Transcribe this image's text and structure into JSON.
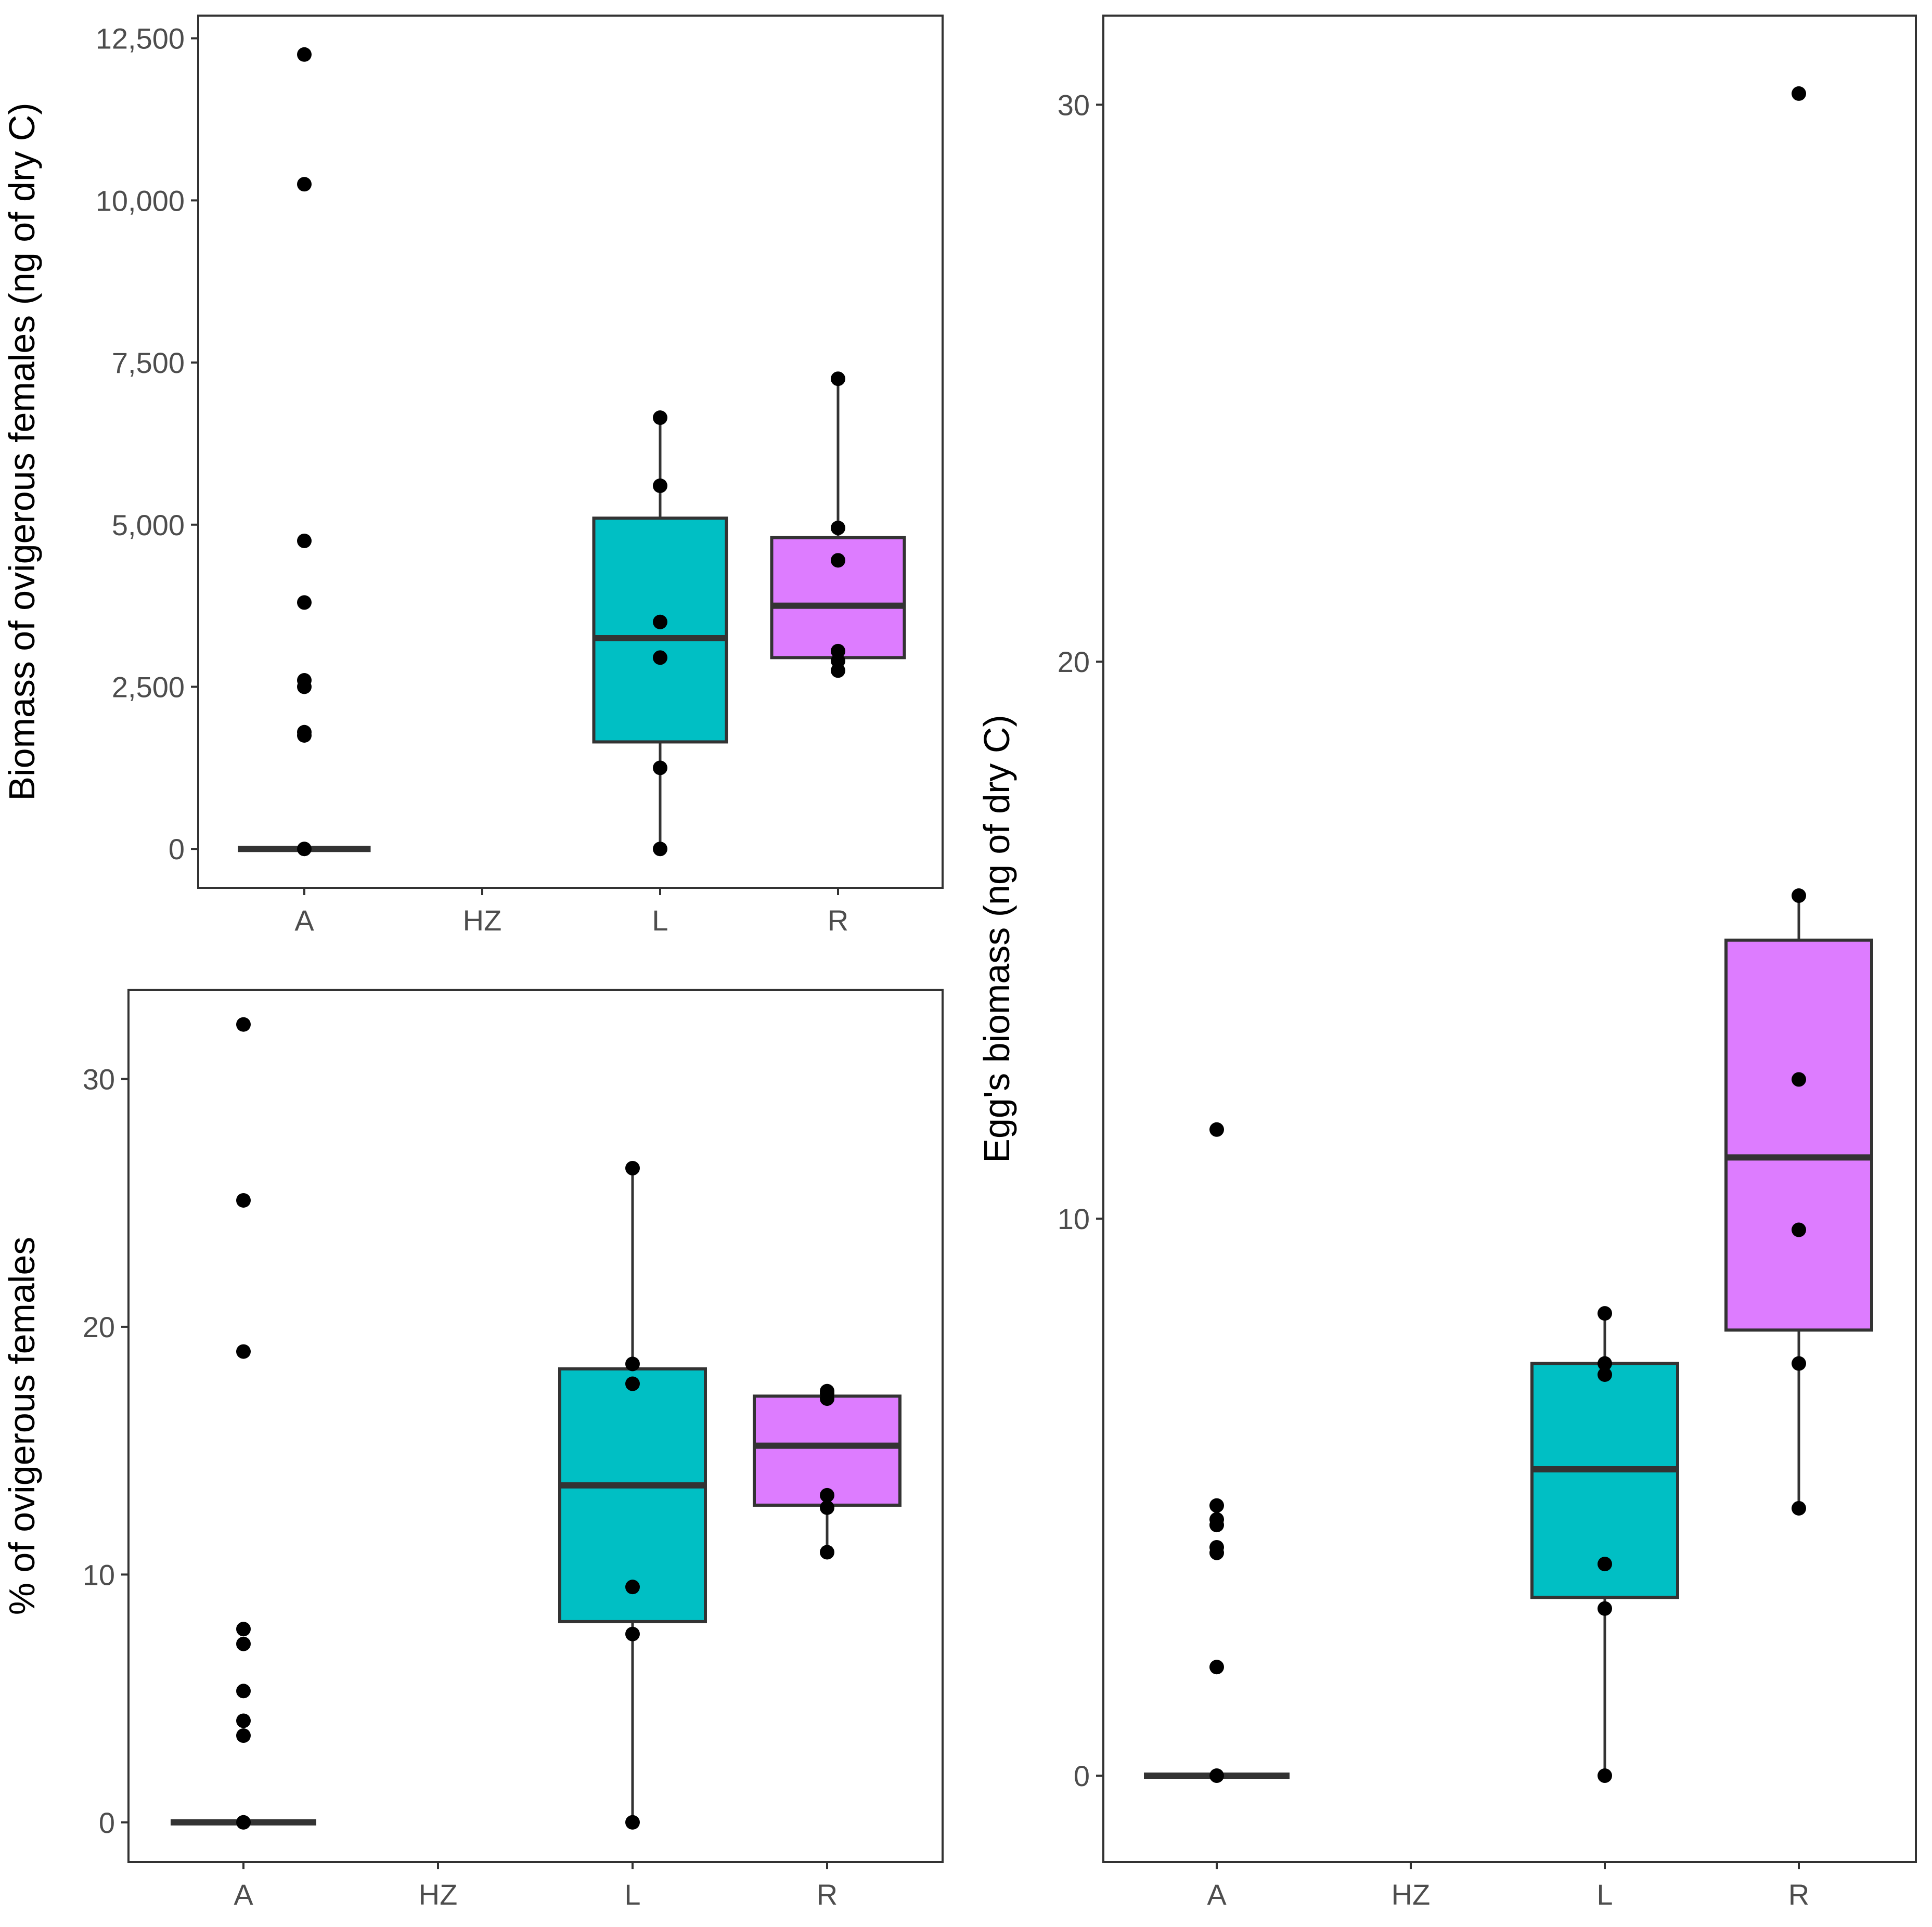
{
  "colors": {
    "L": "#00BFC4",
    "R": "#DD7CFF",
    "frame": "#333333",
    "point": "#000000"
  },
  "chart_data": [
    {
      "id": "biomass",
      "type": "boxplot",
      "title": "",
      "xlabel": "",
      "ylabel": "Biomass of ovigerous females (ng of dry C)",
      "categories": [
        "A",
        "HZ",
        "L",
        "R"
      ],
      "ylim": [
        -600,
        12850
      ],
      "yticks": [
        0,
        2500,
        5000,
        7500,
        10000,
        12500
      ],
      "ytick_labels": [
        "0",
        "2,500",
        "5,000",
        "7,500",
        "10,000",
        "12,500"
      ],
      "boxes": [
        {
          "category": "A",
          "q1": 0,
          "median": 0,
          "q3": 0,
          "whisker_low": 0,
          "whisker_high": 0,
          "fill": ""
        },
        {
          "category": "L",
          "q1": 1650,
          "median": 3250,
          "q3": 5100,
          "whisker_low": 0,
          "whisker_high": 6650,
          "fill": "#00BFC4"
        },
        {
          "category": "R",
          "q1": 2950,
          "median": 3750,
          "q3": 4800,
          "whisker_low": 2750,
          "whisker_high": 7250,
          "fill": "#DD7CFF"
        }
      ],
      "points": [
        {
          "category": "A",
          "values": [
            0,
            1750,
            1800,
            2500,
            2600,
            3800,
            4750,
            10250,
            12250
          ]
        },
        {
          "category": "L",
          "values": [
            0,
            1250,
            2950,
            3500,
            5600,
            6650
          ]
        },
        {
          "category": "R",
          "values": [
            2750,
            2900,
            3050,
            4450,
            4950,
            7250
          ]
        }
      ]
    },
    {
      "id": "percent",
      "type": "boxplot",
      "title": "",
      "xlabel": "",
      "ylabel": "% of ovigerous females",
      "categories": [
        "A",
        "HZ",
        "L",
        "R"
      ],
      "ylim": [
        -1.6,
        33.6
      ],
      "yticks": [
        0,
        10,
        20,
        30
      ],
      "ytick_labels": [
        "0",
        "10",
        "20",
        "30"
      ],
      "boxes": [
        {
          "category": "A",
          "q1": 0,
          "median": 0,
          "q3": 0,
          "whisker_low": 0,
          "whisker_high": 0,
          "fill": ""
        },
        {
          "category": "L",
          "q1": 8.1,
          "median": 13.6,
          "q3": 18.3,
          "whisker_low": 0,
          "whisker_high": 26.4,
          "fill": "#00BFC4"
        },
        {
          "category": "R",
          "q1": 12.8,
          "median": 15.2,
          "q3": 17.2,
          "whisker_low": 10.9,
          "whisker_high": 17.4,
          "fill": "#DD7CFF"
        }
      ],
      "points": [
        {
          "category": "A",
          "values": [
            0,
            3.5,
            4.1,
            5.3,
            7.2,
            7.8,
            19.0,
            25.1,
            32.2
          ]
        },
        {
          "category": "L",
          "values": [
            0,
            7.6,
            9.5,
            17.7,
            18.5,
            26.4
          ]
        },
        {
          "category": "R",
          "values": [
            10.9,
            12.7,
            13.2,
            17.1,
            17.3,
            17.4
          ]
        }
      ]
    },
    {
      "id": "egg",
      "type": "boxplot",
      "title": "",
      "xlabel": "",
      "ylabel": "Egg's biomass (ng of dry C)",
      "categories": [
        "A",
        "HZ",
        "L",
        "R"
      ],
      "ylim": [
        -1.55,
        31.6
      ],
      "yticks": [
        0,
        10,
        20,
        30
      ],
      "ytick_labels": [
        "0",
        "10",
        "20",
        "30"
      ],
      "boxes": [
        {
          "category": "A",
          "q1": 0,
          "median": 0,
          "q3": 0,
          "whisker_low": 0,
          "whisker_high": 0,
          "fill": ""
        },
        {
          "category": "L",
          "q1": 3.2,
          "median": 5.5,
          "q3": 7.4,
          "whisker_low": 0,
          "whisker_high": 8.3,
          "fill": "#00BFC4"
        },
        {
          "category": "R",
          "q1": 8.0,
          "median": 11.1,
          "q3": 15.0,
          "whisker_low": 4.8,
          "whisker_high": 15.8,
          "fill": "#DD7CFF"
        }
      ],
      "points": [
        {
          "category": "A",
          "values": [
            0,
            1.95,
            4.0,
            4.1,
            4.5,
            4.6,
            4.85,
            11.6
          ]
        },
        {
          "category": "L",
          "values": [
            0,
            3.0,
            3.8,
            7.2,
            7.4,
            8.3
          ]
        },
        {
          "category": "R",
          "values": [
            4.8,
            7.4,
            9.8,
            12.5,
            15.8,
            30.2
          ]
        }
      ]
    }
  ]
}
